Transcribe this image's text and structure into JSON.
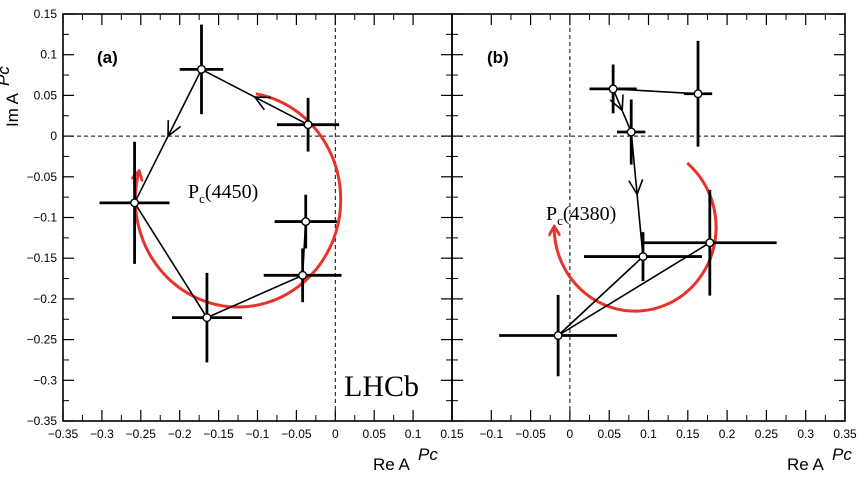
{
  "chart_data": [
    {
      "type": "scatter",
      "panel": "(a)",
      "resonance": "Pc(4450)",
      "resonance_main": "P",
      "resonance_sub": "c",
      "resonance_mass": "(4450)",
      "experiment_label": "LHCb",
      "xlabel": "Re A",
      "ylabel": "Im A",
      "label_superscript": "Pc",
      "xlim": [
        -0.35,
        0.15
      ],
      "ylim": [
        -0.35,
        0.15
      ],
      "xticks": [
        -0.35,
        -0.3,
        -0.25,
        -0.2,
        -0.15,
        -0.1,
        -0.05,
        0,
        0.05,
        0.1
      ],
      "xtick_labels": [
        "−0.35",
        "−0.3",
        "−0.25",
        "−0.2",
        "−0.15",
        "−0.1",
        "−0.05",
        "0",
        "0.05",
        "0.1"
      ],
      "yticks": [
        -0.35,
        -0.3,
        -0.25,
        -0.2,
        -0.15,
        -0.1,
        -0.05,
        0,
        0.05,
        0.1,
        0.15
      ],
      "ytick_labels": [
        "−0.35",
        "−0.3",
        "−0.25",
        "−0.2",
        "−0.15",
        "−0.1",
        "−0.05",
        "0",
        "0.05",
        "0.1",
        "0.15"
      ],
      "points": [
        {
          "x": -0.172,
          "y": 0.082,
          "xerr": 0.028,
          "yerr": 0.055
        },
        {
          "x": -0.035,
          "y": 0.014,
          "xerr": 0.04,
          "yerr": 0.033
        },
        {
          "x": -0.258,
          "y": -0.082,
          "xerr": 0.045,
          "yerr": 0.075
        },
        {
          "x": -0.038,
          "y": -0.105,
          "xerr": 0.04,
          "yerr": 0.033
        },
        {
          "x": -0.042,
          "y": -0.171,
          "xerr": 0.05,
          "yerr": 0.033
        },
        {
          "x": -0.165,
          "y": -0.223,
          "xerr": 0.045,
          "yerr": 0.055
        }
      ],
      "path_order": [
        1,
        0,
        2,
        5,
        4,
        3
      ],
      "arrow_along_path": true,
      "circle": {
        "cx": -0.125,
        "cy": -0.078,
        "r": 0.132,
        "start_deg": 80,
        "end_deg": -195
      },
      "circle_color": "#e8332b"
    },
    {
      "type": "scatter",
      "panel": "(b)",
      "resonance": "Pc(4380)",
      "resonance_main": "P",
      "resonance_sub": "c",
      "resonance_mass": "(4380)",
      "xlabel": "Re A",
      "ylabel": "",
      "label_superscript": "Pc",
      "xlim": [
        -0.15,
        0.35
      ],
      "ylim": [
        -0.35,
        0.15
      ],
      "xticks": [
        -0.1,
        -0.05,
        0,
        0.05,
        0.1,
        0.15,
        0.2,
        0.25,
        0.3,
        0.35
      ],
      "xtick_labels": [
        "−0.1",
        "−0.05",
        "0",
        "0.05",
        "0.1",
        "0.15",
        "0.2",
        "0.25",
        "0.3",
        "0.35"
      ],
      "left_edge_label": "0.15",
      "points": [
        {
          "x": 0.055,
          "y": 0.058,
          "xerr": 0.03,
          "yerr": 0.03
        },
        {
          "x": 0.163,
          "y": 0.052,
          "xerr": 0.018,
          "yerr": 0.065
        },
        {
          "x": 0.078,
          "y": 0.005,
          "xerr": 0.018,
          "yerr": 0.04
        },
        {
          "x": 0.178,
          "y": -0.131,
          "xerr": 0.085,
          "yerr": 0.065
        },
        {
          "x": 0.093,
          "y": -0.148,
          "xerr": 0.075,
          "yerr": 0.03
        },
        {
          "x": -0.015,
          "y": -0.245,
          "xerr": 0.075,
          "yerr": 0.05
        }
      ],
      "path_order": [
        1,
        0,
        2,
        4,
        5,
        3
      ],
      "arrow_along_path": true,
      "circle": {
        "cx": 0.083,
        "cy": -0.112,
        "r": 0.103,
        "start_deg": 50,
        "end_deg": -180
      },
      "circle_color": "#e8332b"
    }
  ]
}
